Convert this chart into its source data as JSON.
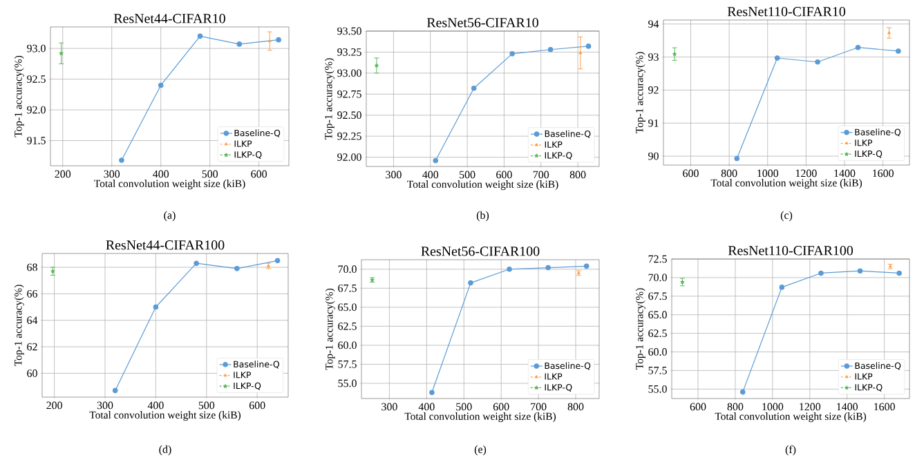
{
  "chart_data": [
    {
      "type": "line",
      "title": "ResNet44-CIFAR10",
      "xlabel": "Total convolution weight size (kiB)",
      "ylabel": "Top-1 accuracy(%)",
      "annotations": [
        "(a)"
      ],
      "grid": true,
      "legend": "bottom right",
      "xlim": [
        175,
        661
      ],
      "ylim": [
        91.09,
        93.35
      ],
      "xticks": [
        200,
        300,
        400,
        500,
        600
      ],
      "yticks": [
        91.5,
        {
          "value": 92,
          "label": "92.0"
        },
        92.5,
        {
          "value": 93,
          "label": "93.0"
        }
      ],
      "series": [
        {
          "name": "Baseline-Q",
          "color": "#5b9bd5",
          "marker": "circle",
          "line_style": "solid",
          "x": [
            320,
            400,
            480,
            560,
            640
          ],
          "values": [
            91.18,
            92.4,
            93.2,
            93.07,
            93.14
          ]
        },
        {
          "name": "ILKP",
          "color": "#ff9f4a",
          "marker": "triangle",
          "line_style": "dashed",
          "x": [
            622
          ],
          "values": [
            93.12
          ],
          "errors": [
            0.15
          ]
        },
        {
          "name": "ILKP-Q",
          "color": "#5cb85c",
          "marker": "star",
          "line_style": "dashed",
          "x": [
            197
          ],
          "values": [
            92.92
          ],
          "errors": [
            0.17
          ]
        }
      ]
    },
    {
      "type": "line",
      "title": "ResNet56-CIFAR10",
      "xlabel": "Total convolution weight size (kiB)",
      "ylabel": "Top-1 accuracy(%)",
      "annotations": [
        "(b)"
      ],
      "grid": true,
      "legend": "bottom right",
      "xlim": [
        226,
        858
      ],
      "ylim": [
        91.89,
        93.5
      ],
      "xticks": [
        300,
        400,
        500,
        600,
        700,
        800
      ],
      "yticks": [
        {
          "value": 92,
          "label": "92.00"
        },
        92.25,
        {
          "value": 92.5,
          "label": "92.50"
        },
        92.75,
        {
          "value": 93,
          "label": "93.00"
        },
        93.25,
        {
          "value": 93.5,
          "label": "93.50"
        }
      ],
      "series": [
        {
          "name": "Baseline-Q",
          "color": "#5b9bd5",
          "marker": "circle",
          "line_style": "solid",
          "x": [
            414,
            518,
            622,
            726,
            829
          ],
          "values": [
            91.96,
            92.82,
            93.23,
            93.28,
            93.32
          ]
        },
        {
          "name": "ILKP",
          "color": "#ff9f4a",
          "marker": "triangle",
          "line_style": "dashed",
          "x": [
            807
          ],
          "values": [
            93.24
          ],
          "errors": [
            0.19
          ]
        },
        {
          "name": "ILKP-Q",
          "color": "#5cb85c",
          "marker": "star",
          "line_style": "dashed",
          "x": [
            254
          ],
          "values": [
            93.09
          ],
          "errors": [
            0.09
          ]
        }
      ]
    },
    {
      "type": "line",
      "title": "ResNet110-CIFAR10",
      "xlabel": "Total convolution weight size (kiB)",
      "ylabel": "Top-1 accuracy(%)",
      "annotations": [
        "(c)"
      ],
      "grid": true,
      "legend": "bottom right",
      "xlim": [
        458,
        1738
      ],
      "ylim": [
        89.73,
        94.12
      ],
      "xticks": [
        600,
        800,
        1000,
        1200,
        1400,
        1600
      ],
      "yticks": [
        90,
        91,
        92,
        93,
        94
      ],
      "series": [
        {
          "name": "Baseline-Q",
          "color": "#5b9bd5",
          "marker": "circle",
          "line_style": "solid",
          "x": [
            840,
            1050,
            1260,
            1470,
            1680
          ],
          "values": [
            89.93,
            92.97,
            92.85,
            93.29,
            93.18
          ]
        },
        {
          "name": "ILKP",
          "color": "#ff9f4a",
          "marker": "triangle",
          "line_style": "dashed",
          "x": [
            1632
          ],
          "values": [
            93.73
          ],
          "errors": [
            0.16
          ]
        },
        {
          "name": "ILKP-Q",
          "color": "#5cb85c",
          "marker": "star",
          "line_style": "dashed",
          "x": [
            516
          ],
          "values": [
            93.09
          ],
          "errors": [
            0.19
          ]
        }
      ]
    },
    {
      "type": "line",
      "title": "ResNet44-CIFAR100",
      "xlabel": "Total convolution weight size (kiB)",
      "ylabel": "Top-1 accuracy(%)",
      "annotations": [
        "(d)"
      ],
      "grid": true,
      "legend": "bottom right",
      "xlim": [
        176,
        661
      ],
      "ylim": [
        58.2,
        69.04
      ],
      "xticks": [
        200,
        300,
        400,
        500,
        600
      ],
      "yticks": [
        60,
        62,
        64,
        66,
        68
      ],
      "series": [
        {
          "name": "Baseline-Q",
          "color": "#5b9bd5",
          "marker": "circle",
          "line_style": "solid",
          "x": [
            320,
            400,
            480,
            560,
            640
          ],
          "values": [
            58.7,
            65.0,
            68.3,
            67.9,
            68.5
          ]
        },
        {
          "name": "ILKP",
          "color": "#ff9f4a",
          "marker": "triangle",
          "line_style": "dashed",
          "x": [
            622
          ],
          "values": [
            68.1
          ],
          "errors": [
            0.2
          ]
        },
        {
          "name": "ILKP-Q",
          "color": "#5cb85c",
          "marker": "star",
          "line_style": "dashed",
          "x": [
            197
          ],
          "values": [
            67.7
          ],
          "errors": [
            0.3
          ]
        }
      ]
    },
    {
      "type": "line",
      "title": "ResNet56-CIFAR100",
      "xlabel": "Total convolution weight size (kiB)",
      "ylabel": "Top-1 accuracy(%)",
      "annotations": [
        "(e)"
      ],
      "grid": true,
      "legend": "bottom right",
      "xlim": [
        225,
        863
      ],
      "ylim": [
        53,
        71.25
      ],
      "xticks": [
        300,
        400,
        500,
        600,
        700,
        800
      ],
      "yticks": [
        {
          "value": 55,
          "label": "55.0"
        },
        57.5,
        {
          "value": 60,
          "label": "60.0"
        },
        62.5,
        {
          "value": 65,
          "label": "65.0"
        },
        67.5,
        {
          "value": 70,
          "label": "70.0"
        }
      ],
      "series": [
        {
          "name": "Baseline-Q",
          "color": "#5b9bd5",
          "marker": "circle",
          "line_style": "solid",
          "x": [
            414,
            518,
            622,
            726,
            829
          ],
          "values": [
            53.8,
            68.2,
            70.0,
            70.2,
            70.4
          ]
        },
        {
          "name": "ILKP",
          "color": "#ff9f4a",
          "marker": "triangle",
          "line_style": "dashed",
          "x": [
            808
          ],
          "values": [
            69.5
          ],
          "errors": [
            0.3
          ]
        },
        {
          "name": "ILKP-Q",
          "color": "#5cb85c",
          "marker": "star",
          "line_style": "dashed",
          "x": [
            254
          ],
          "values": [
            68.6
          ],
          "errors": [
            0.3
          ]
        }
      ]
    },
    {
      "type": "line",
      "title": "ResNet110-CIFAR100",
      "xlabel": "Total convolution weight size (kiB)",
      "ylabel": "Top-1 accuracy(%)",
      "annotations": [
        "(f)"
      ],
      "grid": true,
      "legend": "bottom right",
      "xlim": [
        459,
        1735
      ],
      "ylim": [
        53.73,
        72.5
      ],
      "xticks": [
        600,
        800,
        1000,
        1200,
        1400,
        1600
      ],
      "yticks": [
        {
          "value": 55,
          "label": "55.0"
        },
        57.5,
        {
          "value": 60,
          "label": "60.0"
        },
        62.5,
        {
          "value": 65,
          "label": "65.0"
        },
        67.5,
        {
          "value": 70,
          "label": "70.0"
        },
        72.5
      ],
      "series": [
        {
          "name": "Baseline-Q",
          "color": "#5b9bd5",
          "marker": "circle",
          "line_style": "solid",
          "x": [
            840,
            1050,
            1260,
            1470,
            1680
          ],
          "values": [
            54.6,
            68.7,
            70.6,
            70.9,
            70.6
          ]
        },
        {
          "name": "ILKP",
          "color": "#ff9f4a",
          "marker": "triangle",
          "line_style": "dashed",
          "x": [
            1632
          ],
          "values": [
            71.5
          ],
          "errors": [
            0.3
          ]
        },
        {
          "name": "ILKP-Q",
          "color": "#5cb85c",
          "marker": "star",
          "line_style": "dashed",
          "x": [
            516
          ],
          "values": [
            69.4
          ],
          "errors": [
            0.5
          ]
        }
      ]
    }
  ]
}
